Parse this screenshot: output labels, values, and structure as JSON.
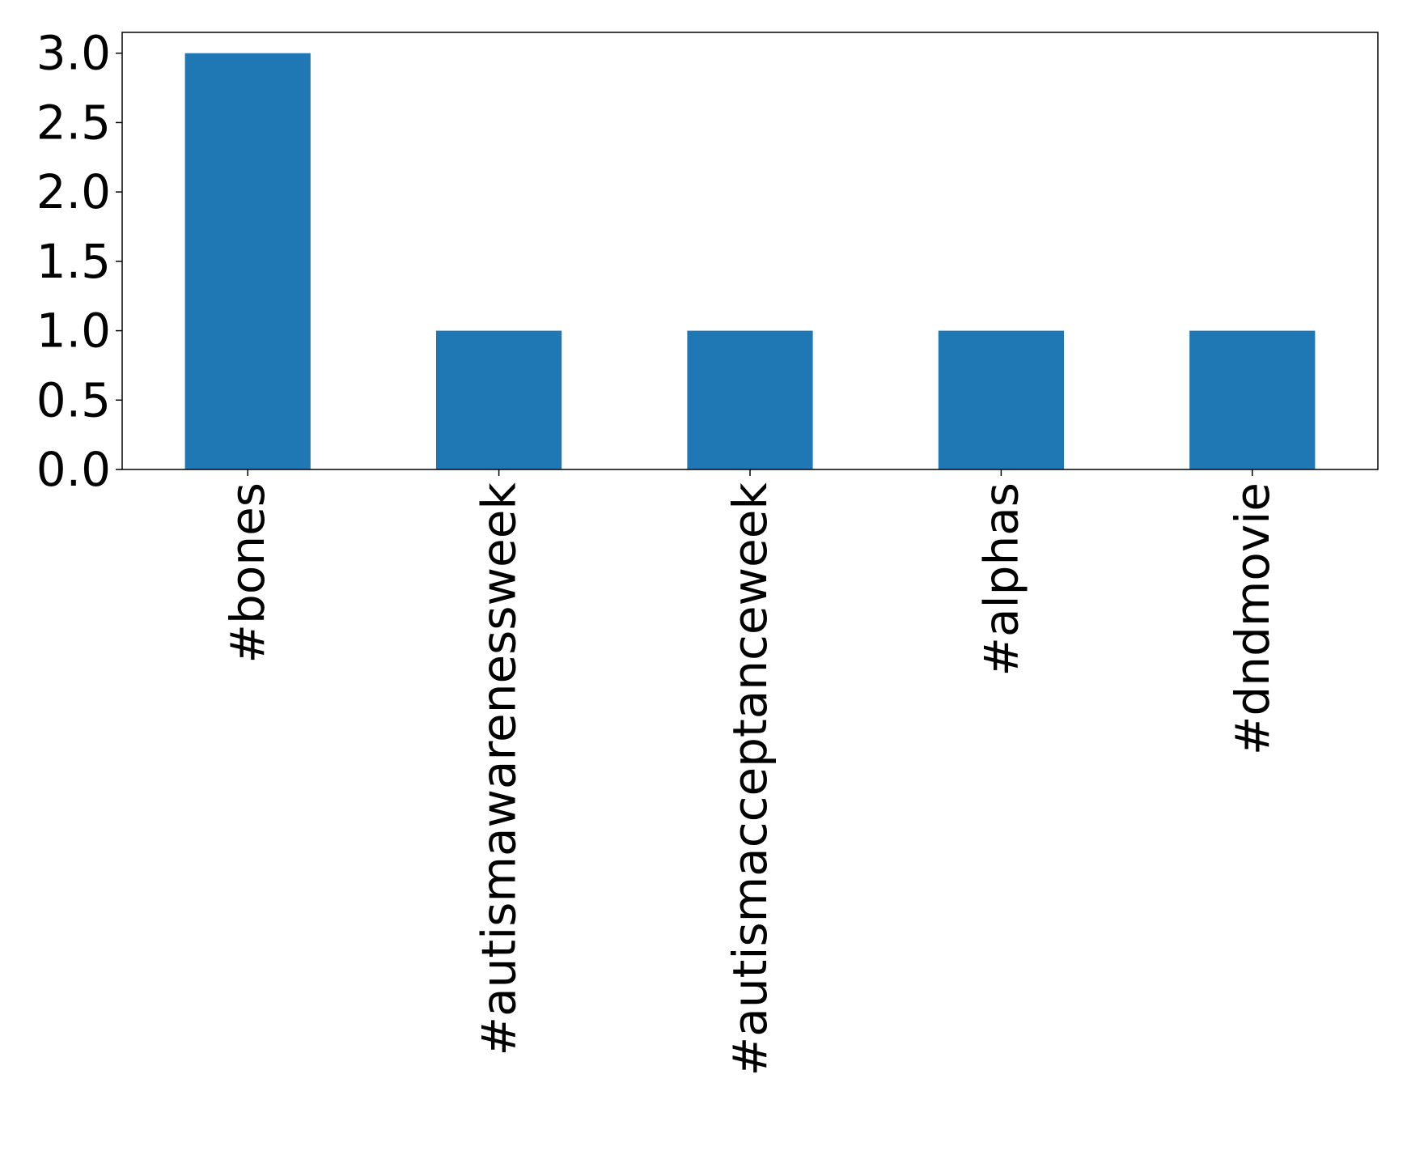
{
  "chart_data": {
    "type": "bar",
    "title": "",
    "xlabel": "",
    "ylabel": "",
    "categories": [
      "#bones",
      "#autismawarenessweek",
      "#autismacceptanceweek",
      "#alphas",
      "#dndmovie"
    ],
    "values": [
      3,
      1,
      1,
      1,
      1
    ],
    "ylim": [
      0,
      3.15
    ],
    "yticks": [
      "0.0",
      "0.5",
      "1.0",
      "1.5",
      "2.0",
      "2.5",
      "3.0"
    ],
    "bar_color": "#1f77b4",
    "grid": false,
    "legend": "none"
  }
}
